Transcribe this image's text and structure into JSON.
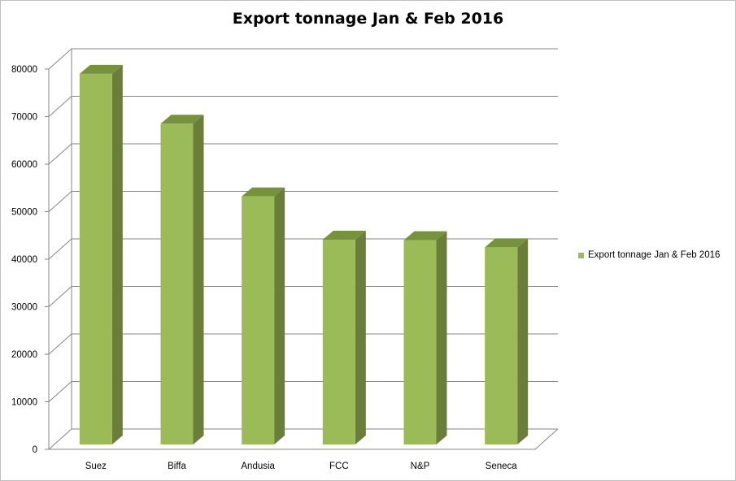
{
  "chart_data": {
    "type": "bar",
    "title": "Export tonnage Jan & Feb 2016",
    "categories": [
      "Suez",
      "Biffa",
      "Andusia",
      "FCC",
      "N&P",
      "Seneca"
    ],
    "series": [
      {
        "name": "Export tonnage Jan & Feb 2016",
        "values": [
          79000,
          68500,
          53200,
          44100,
          44000,
          42500
        ]
      }
    ],
    "xlabel": "",
    "ylabel": "",
    "ylim": [
      0,
      80000
    ],
    "yticks": [
      "0",
      "10000",
      "20000",
      "30000",
      "40000",
      "50000",
      "60000",
      "70000",
      "80000"
    ],
    "grid": true,
    "legend_position": "right",
    "style_3d": true
  },
  "colors": {
    "bar_front": "#9bbb59",
    "bar_side": "#6a7d3b",
    "bar_top": "#76923c",
    "gridline": "#868686",
    "axis": "#868686",
    "legend_swatch": "#9bbb59"
  }
}
